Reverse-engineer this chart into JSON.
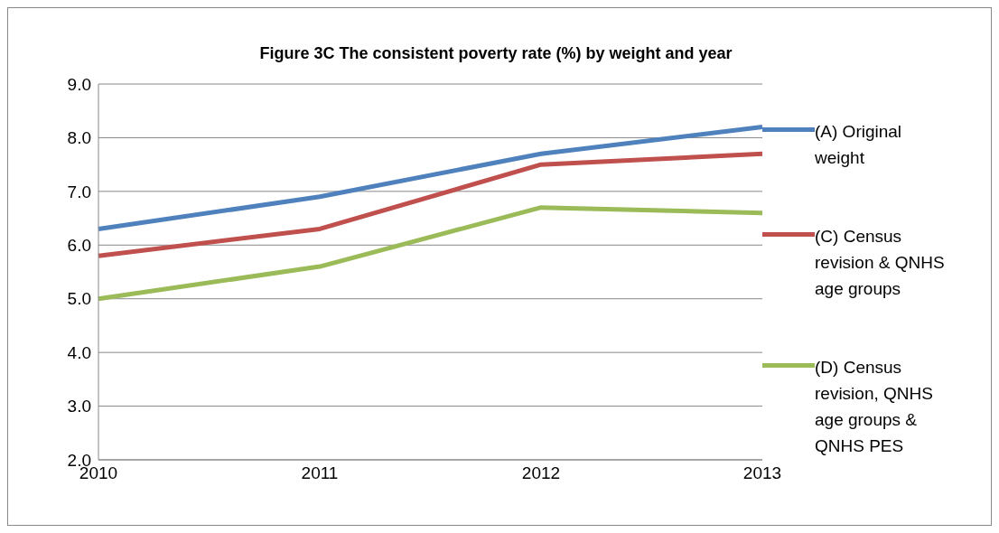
{
  "chart_data": {
    "type": "line",
    "title": "Figure 3C The consistent poverty rate (%) by weight and year",
    "categories": [
      "2010",
      "2011",
      "2012",
      "2013"
    ],
    "series": [
      {
        "name": "(A) Original weight",
        "color": "#4f81bd",
        "values": [
          6.3,
          6.9,
          7.7,
          8.2
        ]
      },
      {
        "name": "(C) Census revision & QNHS age groups",
        "color": "#c0504d",
        "values": [
          5.8,
          6.3,
          7.5,
          7.7
        ]
      },
      {
        "name": "(D) Census revision, QNHS age groups & QNHS PES",
        "color": "#9bbb59",
        "values": [
          5.0,
          5.6,
          6.7,
          6.6
        ]
      }
    ],
    "ylim": [
      2,
      9
    ],
    "yticks": [
      {
        "value": 2,
        "label": "2.0"
      },
      {
        "value": 3,
        "label": "3.0"
      },
      {
        "value": 4,
        "label": "4.0"
      },
      {
        "value": 5,
        "label": "5.0"
      },
      {
        "value": 6,
        "label": "6.0"
      },
      {
        "value": 7,
        "label": "7.0"
      },
      {
        "value": 8,
        "label": "8.0"
      },
      {
        "value": 9,
        "label": "9.0"
      }
    ],
    "grid": "y",
    "legend": "right",
    "marker": "none",
    "line_style": "solid"
  }
}
